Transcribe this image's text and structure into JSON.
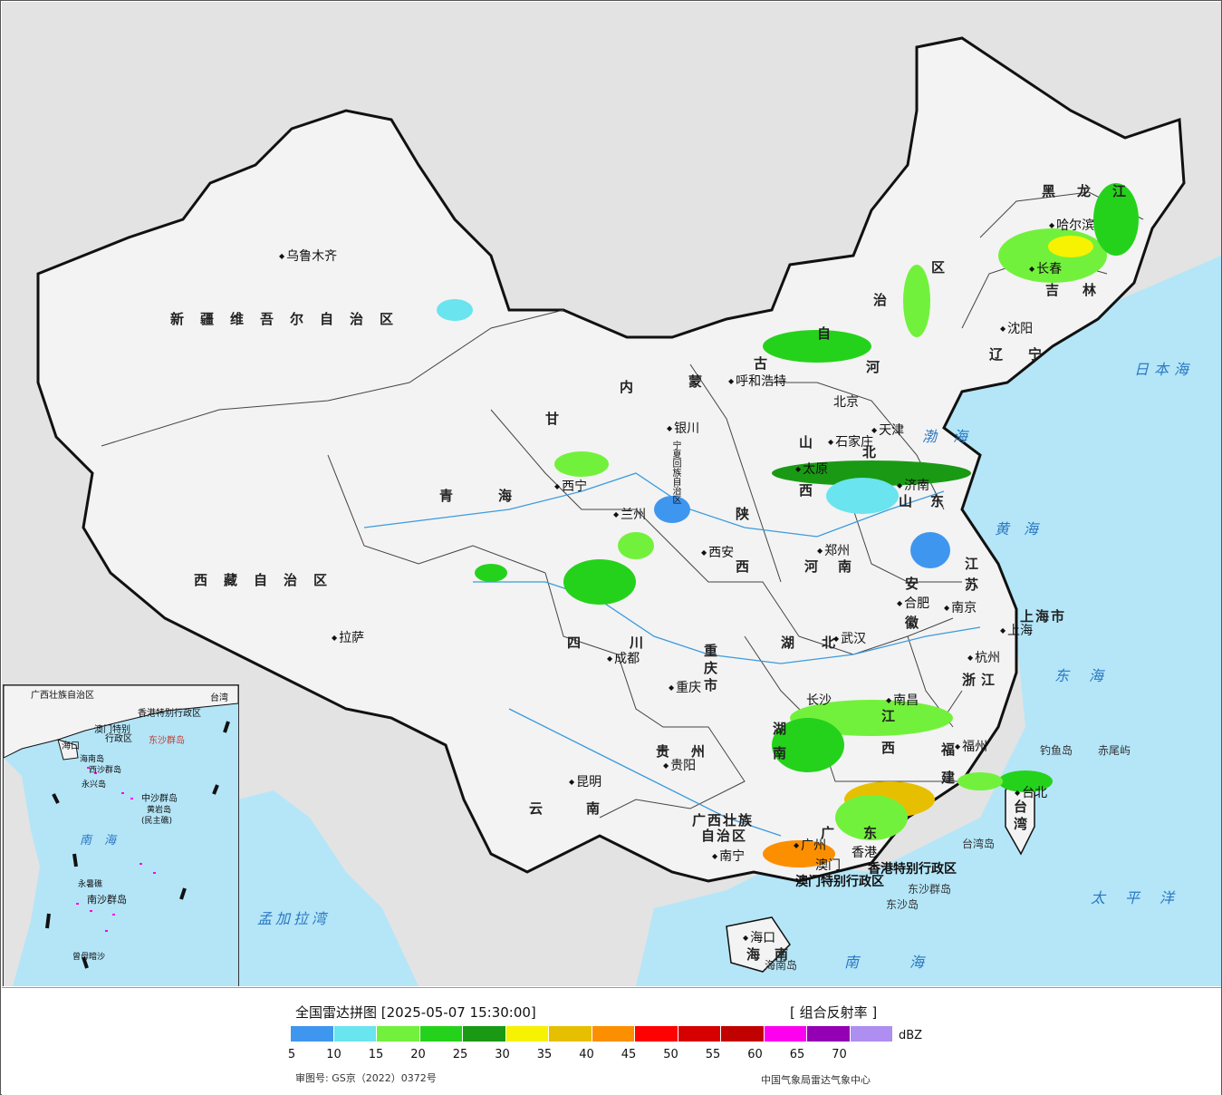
{
  "legend": {
    "title": "全国雷达拼图 [2025-05-07 15:30:00]",
    "product": "[ 组合反射率 ]",
    "unit": "dBZ",
    "levels": [
      "5",
      "10",
      "15",
      "20",
      "25",
      "30",
      "35",
      "40",
      "45",
      "50",
      "55",
      "60",
      "65",
      "70"
    ],
    "colors": [
      "#3f96ef",
      "#6ae4ee",
      "#72f13c",
      "#25d21b",
      "#1a9a14",
      "#f6f201",
      "#e6bf00",
      "#fc8f00",
      "#fd0200",
      "#d60000",
      "#c10000",
      "#fd00f0",
      "#9400b4",
      "#ae8ef0"
    ],
    "approval_no": "审图号: GS京（2022）0372号",
    "source": "中国气象局雷达气象中心"
  },
  "regions": [
    {
      "name": "新疆维吾尔自治区",
      "id": "xinjiang"
    },
    {
      "name": "西藏自治区",
      "id": "xizang"
    },
    {
      "name": "青海",
      "id": "qinghai"
    },
    {
      "name": "甘",
      "id": "gansu"
    },
    {
      "name": "内",
      "id": "neimeng-1"
    },
    {
      "name": "蒙",
      "id": "neimeng-2"
    },
    {
      "name": "古",
      "id": "neimeng-3"
    },
    {
      "name": "自",
      "id": "neimeng-4"
    },
    {
      "name": "治",
      "id": "neimeng-5"
    },
    {
      "name": "区",
      "id": "neimeng-6"
    },
    {
      "name": "黑龙江",
      "id": "heilongjiang"
    },
    {
      "name": "吉林",
      "id": "jilin"
    },
    {
      "name": "辽宁",
      "id": "liaoning"
    },
    {
      "name": "河",
      "id": "hebei-1"
    },
    {
      "name": "北",
      "id": "hebei-2"
    },
    {
      "name": "山西",
      "id": "shanxi"
    },
    {
      "name": "山东",
      "id": "shandong"
    },
    {
      "name": "陕",
      "id": "shaanxi-1"
    },
    {
      "name": "西",
      "id": "shaanxi-2"
    },
    {
      "name": "河南",
      "id": "henan"
    },
    {
      "name": "江苏",
      "id": "jiangsu"
    },
    {
      "name": "安徽",
      "id": "anhui"
    },
    {
      "name": "上海市",
      "id": "shanghai"
    },
    {
      "name": "浙江",
      "id": "zhejiang"
    },
    {
      "name": "湖北",
      "id": "hubei"
    },
    {
      "name": "四川",
      "id": "sichuan"
    },
    {
      "name": "重庆市",
      "id": "chongqing"
    },
    {
      "name": "湖南",
      "id": "hunan"
    },
    {
      "name": "江西",
      "id": "jiangxi"
    },
    {
      "name": "福建",
      "id": "fujian"
    },
    {
      "name": "贵州",
      "id": "guizhou"
    },
    {
      "name": "云南",
      "id": "yunnan"
    },
    {
      "name": "广西壮族",
      "id": "guangxi-1"
    },
    {
      "name": "自治区",
      "id": "guangxi-2"
    },
    {
      "name": "广东",
      "id": "guangdong"
    },
    {
      "name": "海南",
      "id": "hainan"
    },
    {
      "name": "台湾",
      "id": "taiwan"
    },
    {
      "name": "宁夏回族自治区",
      "id": "ningxia"
    }
  ],
  "cities": [
    {
      "name": "乌鲁木齐"
    },
    {
      "name": "拉萨"
    },
    {
      "name": "西宁"
    },
    {
      "name": "兰州"
    },
    {
      "name": "银川"
    },
    {
      "name": "呼和浩特"
    },
    {
      "name": "北京"
    },
    {
      "name": "天津"
    },
    {
      "name": "石家庄"
    },
    {
      "name": "太原"
    },
    {
      "name": "济南"
    },
    {
      "name": "郑州"
    },
    {
      "name": "西安"
    },
    {
      "name": "成都"
    },
    {
      "name": "重庆"
    },
    {
      "name": "武汉"
    },
    {
      "name": "合肥"
    },
    {
      "name": "南京"
    },
    {
      "name": "上海"
    },
    {
      "name": "杭州"
    },
    {
      "name": "南昌"
    },
    {
      "name": "长沙"
    },
    {
      "name": "福州"
    },
    {
      "name": "台北"
    },
    {
      "name": "贵阳"
    },
    {
      "name": "昆明"
    },
    {
      "name": "南宁"
    },
    {
      "name": "广州"
    },
    {
      "name": "海口"
    },
    {
      "name": "哈尔滨"
    },
    {
      "name": "长春"
    },
    {
      "name": "沈阳"
    },
    {
      "name": "澳门"
    },
    {
      "name": "香港"
    }
  ],
  "seas": [
    {
      "name": "日本海"
    },
    {
      "name": "渤海"
    },
    {
      "name": "黄海"
    },
    {
      "name": "东海"
    },
    {
      "name": "太平洋"
    },
    {
      "name": "南海"
    },
    {
      "name": "孟加拉湾"
    }
  ],
  "islands": [
    {
      "name": "钓鱼岛"
    },
    {
      "name": "赤尾屿"
    },
    {
      "name": "台湾岛"
    },
    {
      "name": "东沙群岛"
    },
    {
      "name": "东沙岛"
    },
    {
      "name": "海南岛"
    },
    {
      "name": "香港特别行政区"
    },
    {
      "name": "澳门特别行政区"
    }
  ],
  "inset": {
    "labels": [
      "广西壮族自治区",
      "台湾",
      "香港特别行政区",
      "澳门特别",
      "行政区",
      "东沙群岛",
      "海口",
      "海南岛",
      "西沙群岛",
      "永兴岛",
      "中沙群岛",
      "黄岩岛",
      "(民主礁)",
      "南海",
      "永暑礁",
      "南沙群岛",
      "曾母暗沙"
    ]
  }
}
